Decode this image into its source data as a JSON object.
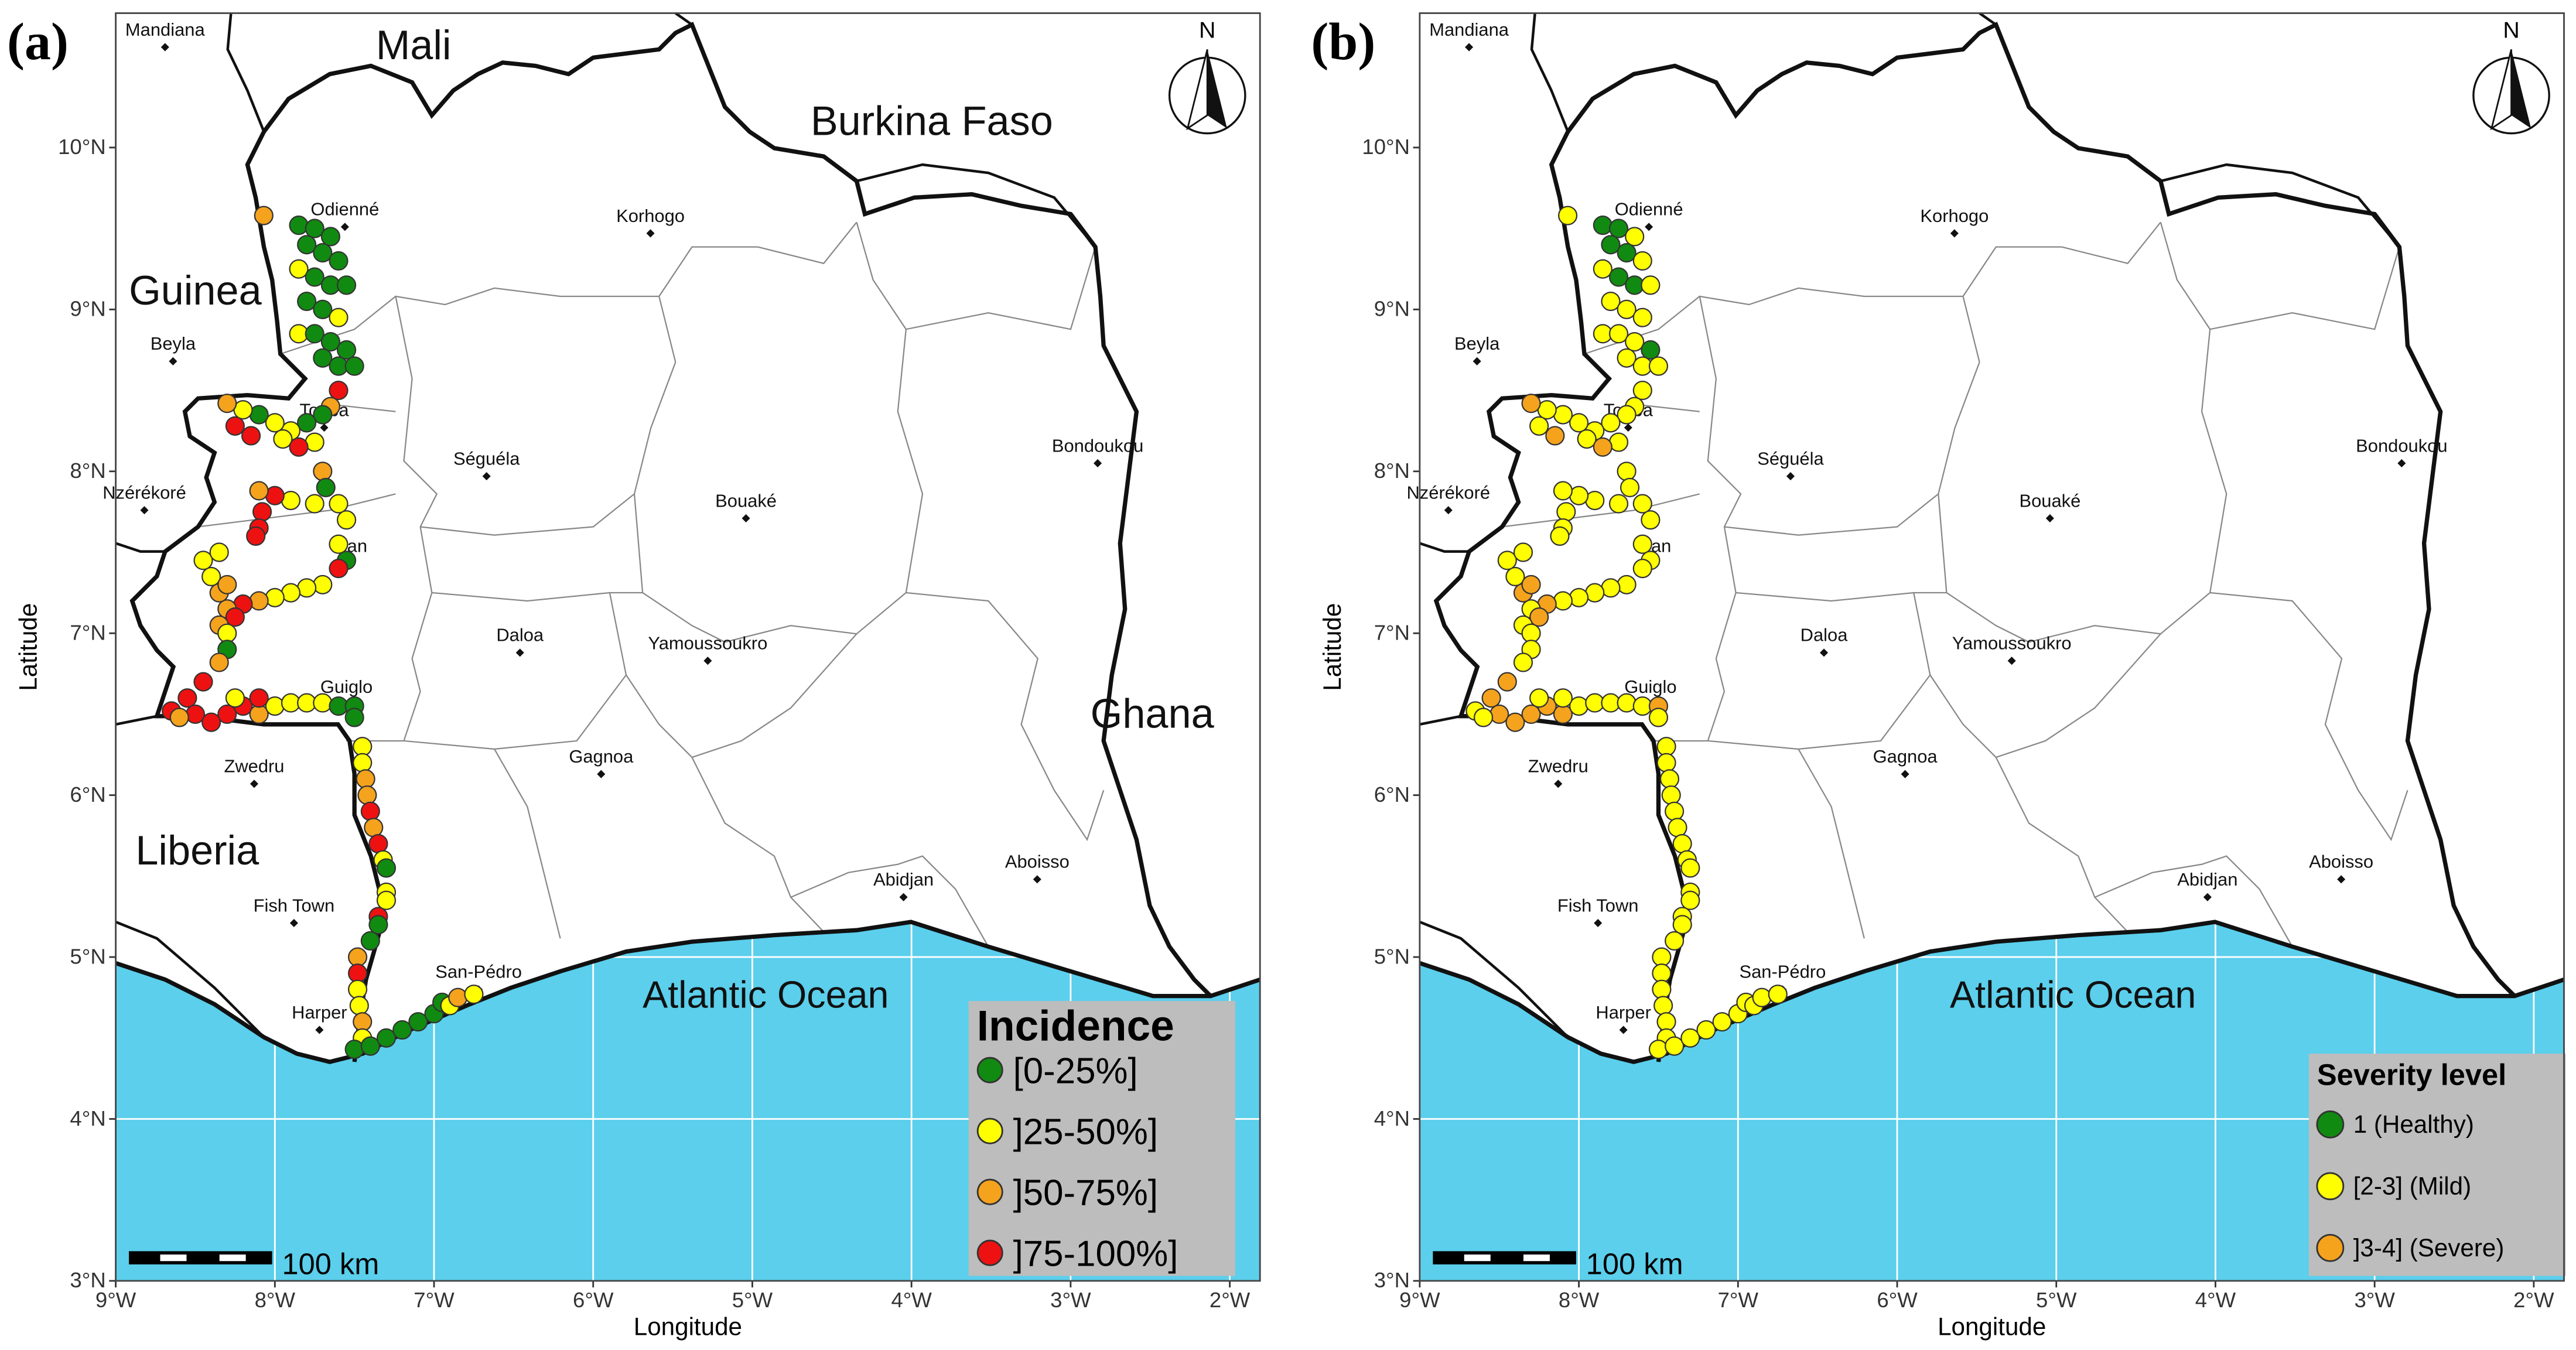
{
  "map": {
    "xlabel": "Longitude",
    "ylabel": "Latitude",
    "xlim": [
      -9,
      -1.81
    ],
    "ylim": [
      3,
      10.83
    ],
    "xticks": [
      {
        "value": -9,
        "label": "9°W"
      },
      {
        "value": -8,
        "label": "8°W"
      },
      {
        "value": -7,
        "label": "7°W"
      },
      {
        "value": -6,
        "label": "6°W"
      },
      {
        "value": -5,
        "label": "5°W"
      },
      {
        "value": -4,
        "label": "4°W"
      },
      {
        "value": -3,
        "label": "3°W"
      },
      {
        "value": -2,
        "label": "2°W"
      }
    ],
    "yticks": [
      {
        "value": 3,
        "label": "3°N"
      },
      {
        "value": 4,
        "label": "4°N"
      },
      {
        "value": 5,
        "label": "5°N"
      },
      {
        "value": 6,
        "label": "6°N"
      },
      {
        "value": 7,
        "label": "7°N"
      },
      {
        "value": 8,
        "label": "8°N"
      },
      {
        "value": 9,
        "label": "9°N"
      },
      {
        "value": 10,
        "label": "10°N"
      }
    ],
    "cities": [
      {
        "name": "Mandiana",
        "lon": -8.69,
        "lat": 10.62
      },
      {
        "name": "Odienné",
        "lon": -7.56,
        "lat": 9.51
      },
      {
        "name": "Korhogo",
        "lon": -5.64,
        "lat": 9.47
      },
      {
        "name": "Beyla",
        "lon": -8.64,
        "lat": 8.68
      },
      {
        "name": "Touba",
        "lon": -7.69,
        "lat": 8.27
      },
      {
        "name": "Séguéla",
        "lon": -6.67,
        "lat": 7.97
      },
      {
        "name": "Bondoukou",
        "lon": -2.83,
        "lat": 8.05
      },
      {
        "name": "Nzérékoré",
        "lon": -8.82,
        "lat": 7.76
      },
      {
        "name": "Bouaké",
        "lon": -5.04,
        "lat": 7.71
      },
      {
        "name": "Man",
        "lon": -7.53,
        "lat": 7.43
      },
      {
        "name": "Daloa",
        "lon": -6.46,
        "lat": 6.88
      },
      {
        "name": "Yamoussoukro",
        "lon": -5.28,
        "lat": 6.83
      },
      {
        "name": "Guiglo",
        "lon": -7.55,
        "lat": 6.56
      },
      {
        "name": "Zwedru",
        "lon": -8.13,
        "lat": 6.07
      },
      {
        "name": "Gagnoa",
        "lon": -5.95,
        "lat": 6.13
      },
      {
        "name": "Abidjan",
        "lon": -4.05,
        "lat": 5.37
      },
      {
        "name": "Aboisso",
        "lon": -3.21,
        "lat": 5.48
      },
      {
        "name": "Fish Town",
        "lon": -7.88,
        "lat": 5.21
      },
      {
        "name": "San-Pédro",
        "lon": -6.72,
        "lat": 4.8
      },
      {
        "name": "Harper",
        "lon": -7.72,
        "lat": 4.55
      }
    ],
    "countries": [
      "Mali",
      "Burkina Faso",
      "Guinea",
      "Ghana",
      "Liberia"
    ],
    "ocean": "Atlantic Ocean",
    "scale_bar": "100 km",
    "north": "N"
  },
  "panels": [
    {
      "label": "(a)",
      "legend": {
        "title": "Incidence",
        "items": [
          {
            "label": "[0-25%]",
            "color": "#118a11"
          },
          {
            "label": "]25-50%]",
            "color": "#ffff00"
          },
          {
            "label": "]50-75%]",
            "color": "#f5a21d"
          },
          {
            "label": "]75-100%]",
            "color": "#ee1111"
          }
        ]
      },
      "points": [
        [
          -8.07,
          9.58,
          2
        ],
        [
          -7.85,
          9.52,
          0
        ],
        [
          -7.75,
          9.5,
          0
        ],
        [
          -7.65,
          9.45,
          0
        ],
        [
          -7.8,
          9.4,
          0
        ],
        [
          -7.7,
          9.35,
          0
        ],
        [
          -7.6,
          9.3,
          0
        ],
        [
          -7.85,
          9.25,
          1
        ],
        [
          -7.75,
          9.2,
          0
        ],
        [
          -7.65,
          9.15,
          0
        ],
        [
          -7.55,
          9.15,
          0
        ],
        [
          -7.8,
          9.05,
          0
        ],
        [
          -7.7,
          9.0,
          0
        ],
        [
          -7.6,
          8.95,
          1
        ],
        [
          -7.85,
          8.85,
          1
        ],
        [
          -7.75,
          8.85,
          0
        ],
        [
          -7.65,
          8.8,
          0
        ],
        [
          -7.55,
          8.75,
          0
        ],
        [
          -7.7,
          8.7,
          0
        ],
        [
          -7.6,
          8.65,
          0
        ],
        [
          -7.5,
          8.65,
          0
        ],
        [
          -7.6,
          8.5,
          3
        ],
        [
          -7.65,
          8.4,
          2
        ],
        [
          -7.7,
          8.35,
          0
        ],
        [
          -7.8,
          8.3,
          0
        ],
        [
          -7.9,
          8.25,
          1
        ],
        [
          -8.0,
          8.3,
          1
        ],
        [
          -8.1,
          8.35,
          0
        ],
        [
          -8.2,
          8.38,
          1
        ],
        [
          -8.3,
          8.42,
          2
        ],
        [
          -8.25,
          8.28,
          3
        ],
        [
          -8.15,
          8.22,
          3
        ],
        [
          -7.95,
          8.2,
          1
        ],
        [
          -7.75,
          8.18,
          1
        ],
        [
          -7.85,
          8.15,
          3
        ],
        [
          -7.7,
          8.0,
          2
        ],
        [
          -7.68,
          7.9,
          0
        ],
        [
          -7.6,
          7.8,
          1
        ],
        [
          -7.55,
          7.7,
          1
        ],
        [
          -7.75,
          7.8,
          1
        ],
        [
          -7.9,
          7.82,
          1
        ],
        [
          -8.0,
          7.85,
          3
        ],
        [
          -8.1,
          7.88,
          2
        ],
        [
          -8.08,
          7.75,
          3
        ],
        [
          -8.1,
          7.65,
          3
        ],
        [
          -8.12,
          7.6,
          3
        ],
        [
          -7.6,
          7.55,
          1
        ],
        [
          -7.55,
          7.45,
          0
        ],
        [
          -7.6,
          7.4,
          3
        ],
        [
          -7.7,
          7.3,
          1
        ],
        [
          -7.8,
          7.28,
          1
        ],
        [
          -7.9,
          7.25,
          1
        ],
        [
          -8.0,
          7.22,
          1
        ],
        [
          -8.1,
          7.2,
          2
        ],
        [
          -8.2,
          7.18,
          3
        ],
        [
          -8.3,
          7.15,
          2
        ],
        [
          -8.35,
          7.25,
          2
        ],
        [
          -8.4,
          7.35,
          1
        ],
        [
          -8.45,
          7.45,
          1
        ],
        [
          -8.35,
          7.5,
          1
        ],
        [
          -8.3,
          7.3,
          2
        ],
        [
          -8.25,
          7.1,
          3
        ],
        [
          -8.35,
          7.05,
          2
        ],
        [
          -8.3,
          7.0,
          1
        ],
        [
          -8.3,
          6.9,
          0
        ],
        [
          -8.35,
          6.82,
          2
        ],
        [
          -8.45,
          6.7,
          3
        ],
        [
          -8.55,
          6.6,
          3
        ],
        [
          -8.65,
          6.52,
          3
        ],
        [
          -8.5,
          6.5,
          3
        ],
        [
          -8.4,
          6.45,
          3
        ],
        [
          -8.3,
          6.5,
          3
        ],
        [
          -8.2,
          6.55,
          3
        ],
        [
          -8.1,
          6.5,
          2
        ],
        [
          -8.0,
          6.55,
          1
        ],
        [
          -7.9,
          6.57,
          1
        ],
        [
          -7.8,
          6.57,
          1
        ],
        [
          -7.7,
          6.57,
          1
        ],
        [
          -7.6,
          6.55,
          0
        ],
        [
          -7.5,
          6.55,
          0
        ],
        [
          -7.5,
          6.48,
          0
        ],
        [
          -8.1,
          6.6,
          3
        ],
        [
          -8.25,
          6.6,
          1
        ],
        [
          -8.6,
          6.48,
          2
        ],
        [
          -7.45,
          6.3,
          1
        ],
        [
          -7.45,
          6.2,
          1
        ],
        [
          -7.43,
          6.1,
          2
        ],
        [
          -7.42,
          6.0,
          2
        ],
        [
          -7.4,
          5.9,
          3
        ],
        [
          -7.38,
          5.8,
          2
        ],
        [
          -7.35,
          5.7,
          3
        ],
        [
          -7.32,
          5.6,
          1
        ],
        [
          -7.3,
          5.55,
          0
        ],
        [
          -7.3,
          5.4,
          1
        ],
        [
          -7.3,
          5.35,
          1
        ],
        [
          -7.35,
          5.25,
          3
        ],
        [
          -7.35,
          5.2,
          0
        ],
        [
          -7.4,
          5.1,
          0
        ],
        [
          -7.48,
          5.0,
          2
        ],
        [
          -7.48,
          4.9,
          3
        ],
        [
          -7.48,
          4.8,
          1
        ],
        [
          -7.47,
          4.7,
          1
        ],
        [
          -7.45,
          4.6,
          2
        ],
        [
          -7.45,
          4.5,
          1
        ],
        [
          -7.5,
          4.43,
          0
        ],
        [
          -7.4,
          4.45,
          0
        ],
        [
          -7.3,
          4.5,
          0
        ],
        [
          -7.2,
          4.55,
          0
        ],
        [
          -7.1,
          4.6,
          0
        ],
        [
          -7.0,
          4.65,
          0
        ],
        [
          -6.95,
          4.72,
          0
        ],
        [
          -6.9,
          4.7,
          1
        ],
        [
          -6.85,
          4.75,
          2
        ],
        [
          -6.75,
          4.77,
          1
        ]
      ]
    },
    {
      "label": "(b)",
      "legend": {
        "title": "Severity level",
        "items": [
          {
            "label": "1 (Healthy)",
            "color": "#118a11"
          },
          {
            "label": "[2-3] (Mild)",
            "color": "#ffff00"
          },
          {
            "label": "]3-4] (Severe)",
            "color": "#f5a21d"
          }
        ]
      },
      "points": [
        [
          -8.07,
          9.58,
          1
        ],
        [
          -7.85,
          9.52,
          0
        ],
        [
          -7.75,
          9.5,
          0
        ],
        [
          -7.65,
          9.45,
          1
        ],
        [
          -7.8,
          9.4,
          0
        ],
        [
          -7.7,
          9.35,
          0
        ],
        [
          -7.6,
          9.3,
          1
        ],
        [
          -7.85,
          9.25,
          1
        ],
        [
          -7.75,
          9.2,
          0
        ],
        [
          -7.65,
          9.15,
          0
        ],
        [
          -7.55,
          9.15,
          1
        ],
        [
          -7.8,
          9.05,
          1
        ],
        [
          -7.7,
          9.0,
          1
        ],
        [
          -7.6,
          8.95,
          1
        ],
        [
          -7.85,
          8.85,
          1
        ],
        [
          -7.75,
          8.85,
          1
        ],
        [
          -7.65,
          8.8,
          1
        ],
        [
          -7.55,
          8.75,
          0
        ],
        [
          -7.7,
          8.7,
          1
        ],
        [
          -7.6,
          8.65,
          1
        ],
        [
          -7.5,
          8.65,
          1
        ],
        [
          -7.6,
          8.5,
          1
        ],
        [
          -7.65,
          8.4,
          1
        ],
        [
          -7.7,
          8.35,
          1
        ],
        [
          -7.8,
          8.3,
          1
        ],
        [
          -7.9,
          8.25,
          1
        ],
        [
          -8.0,
          8.3,
          1
        ],
        [
          -8.1,
          8.35,
          1
        ],
        [
          -8.2,
          8.38,
          1
        ],
        [
          -8.3,
          8.42,
          2
        ],
        [
          -8.25,
          8.28,
          1
        ],
        [
          -8.15,
          8.22,
          2
        ],
        [
          -7.95,
          8.2,
          1
        ],
        [
          -7.75,
          8.18,
          1
        ],
        [
          -7.85,
          8.15,
          2
        ],
        [
          -7.7,
          8.0,
          1
        ],
        [
          -7.68,
          7.9,
          1
        ],
        [
          -7.6,
          7.8,
          1
        ],
        [
          -7.55,
          7.7,
          1
        ],
        [
          -7.75,
          7.8,
          1
        ],
        [
          -7.9,
          7.82,
          1
        ],
        [
          -8.0,
          7.85,
          1
        ],
        [
          -8.1,
          7.88,
          1
        ],
        [
          -8.08,
          7.75,
          1
        ],
        [
          -8.1,
          7.65,
          1
        ],
        [
          -8.12,
          7.6,
          1
        ],
        [
          -7.6,
          7.55,
          1
        ],
        [
          -7.55,
          7.45,
          1
        ],
        [
          -7.6,
          7.4,
          1
        ],
        [
          -7.7,
          7.3,
          1
        ],
        [
          -7.8,
          7.28,
          1
        ],
        [
          -7.9,
          7.25,
          1
        ],
        [
          -8.0,
          7.22,
          1
        ],
        [
          -8.1,
          7.2,
          1
        ],
        [
          -8.2,
          7.18,
          2
        ],
        [
          -8.3,
          7.15,
          1
        ],
        [
          -8.35,
          7.25,
          2
        ],
        [
          -8.4,
          7.35,
          1
        ],
        [
          -8.45,
          7.45,
          1
        ],
        [
          -8.35,
          7.5,
          1
        ],
        [
          -8.3,
          7.3,
          2
        ],
        [
          -8.25,
          7.1,
          2
        ],
        [
          -8.35,
          7.05,
          1
        ],
        [
          -8.3,
          7.0,
          1
        ],
        [
          -8.3,
          6.9,
          1
        ],
        [
          -8.35,
          6.82,
          1
        ],
        [
          -8.45,
          6.7,
          2
        ],
        [
          -8.55,
          6.6,
          2
        ],
        [
          -8.65,
          6.52,
          1
        ],
        [
          -8.5,
          6.5,
          2
        ],
        [
          -8.4,
          6.45,
          2
        ],
        [
          -8.3,
          6.5,
          2
        ],
        [
          -8.2,
          6.55,
          2
        ],
        [
          -8.1,
          6.5,
          2
        ],
        [
          -8.0,
          6.55,
          1
        ],
        [
          -7.9,
          6.57,
          1
        ],
        [
          -7.8,
          6.57,
          1
        ],
        [
          -7.7,
          6.57,
          1
        ],
        [
          -7.6,
          6.55,
          1
        ],
        [
          -7.5,
          6.55,
          2
        ],
        [
          -7.5,
          6.48,
          1
        ],
        [
          -8.1,
          6.6,
          1
        ],
        [
          -8.25,
          6.6,
          1
        ],
        [
          -8.6,
          6.48,
          1
        ],
        [
          -7.45,
          6.3,
          1
        ],
        [
          -7.45,
          6.2,
          1
        ],
        [
          -7.43,
          6.1,
          1
        ],
        [
          -7.42,
          6.0,
          1
        ],
        [
          -7.4,
          5.9,
          1
        ],
        [
          -7.38,
          5.8,
          1
        ],
        [
          -7.35,
          5.7,
          1
        ],
        [
          -7.32,
          5.6,
          1
        ],
        [
          -7.3,
          5.55,
          1
        ],
        [
          -7.3,
          5.4,
          1
        ],
        [
          -7.3,
          5.35,
          1
        ],
        [
          -7.35,
          5.25,
          1
        ],
        [
          -7.35,
          5.2,
          1
        ],
        [
          -7.4,
          5.1,
          1
        ],
        [
          -7.48,
          5.0,
          1
        ],
        [
          -7.48,
          4.9,
          1
        ],
        [
          -7.48,
          4.8,
          1
        ],
        [
          -7.47,
          4.7,
          1
        ],
        [
          -7.45,
          4.6,
          1
        ],
        [
          -7.45,
          4.5,
          1
        ],
        [
          -7.5,
          4.43,
          1
        ],
        [
          -7.4,
          4.45,
          1
        ],
        [
          -7.3,
          4.5,
          1
        ],
        [
          -7.2,
          4.55,
          1
        ],
        [
          -7.1,
          4.6,
          1
        ],
        [
          -7.0,
          4.65,
          1
        ],
        [
          -6.95,
          4.72,
          1
        ],
        [
          -6.9,
          4.7,
          1
        ],
        [
          -6.85,
          4.75,
          1
        ],
        [
          -6.75,
          4.77,
          1
        ]
      ]
    }
  ]
}
